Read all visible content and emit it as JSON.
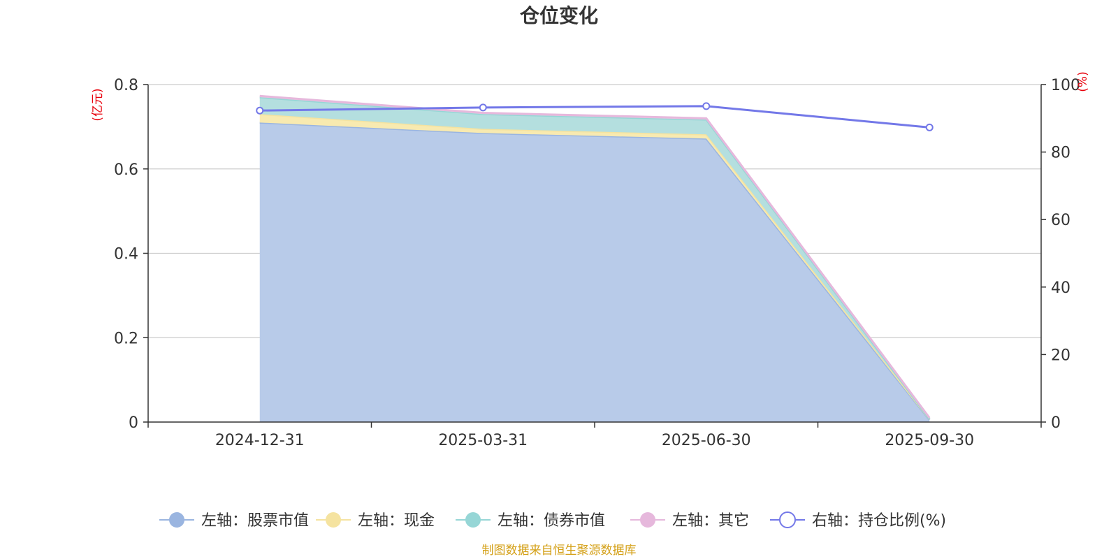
{
  "chart_data": {
    "type": "area",
    "title": "仓位变化",
    "categories": [
      "2024-12-31",
      "2025-03-31",
      "2025-06-30",
      "2025-09-30"
    ],
    "left_axis": {
      "unit": "(亿元)",
      "ylim": [
        0,
        0.8
      ],
      "ticks": [
        "0",
        "0.2",
        "0.4",
        "0.6",
        "0.8"
      ],
      "tick_values": [
        0,
        0.2,
        0.4,
        0.6,
        0.8
      ]
    },
    "right_axis": {
      "unit": "(%)",
      "ylim": [
        0,
        100
      ],
      "ticks": [
        "0",
        "20",
        "40",
        "60",
        "80",
        "100"
      ],
      "tick_values": [
        0,
        20,
        40,
        60,
        80,
        100
      ]
    },
    "stacked_series": [
      {
        "name": "左轴：股票市值",
        "color": "#9ab5e0",
        "fill": "#b8cbe9",
        "values": [
          0.71,
          0.685,
          0.672,
          0.005
        ]
      },
      {
        "name": "左轴：现金",
        "color": "#f5e3a0",
        "fill": "#f8eab0",
        "values": [
          0.02,
          0.01,
          0.01,
          0.002
        ]
      },
      {
        "name": "左轴：债券市值",
        "color": "#96d6d6",
        "fill": "#b4dfdf",
        "values": [
          0.04,
          0.035,
          0.035,
          0.0
        ]
      },
      {
        "name": "左轴：其它",
        "color": "#e6b8dc",
        "fill": "#eccbe4",
        "values": [
          0.003,
          0.003,
          0.003,
          0.003
        ]
      }
    ],
    "line_series": {
      "name": "右轴：持仓比例(%)",
      "color": "#7378e8",
      "values": [
        92.3,
        93.2,
        93.6,
        87.3
      ]
    },
    "grid": true,
    "legend_position": "bottom",
    "colors": {
      "axis_unit": "#e8000b",
      "footer": "#d4a017",
      "grid": "#cccccc",
      "axis": "#333333"
    }
  },
  "footer": "制图数据来自恒生聚源数据库"
}
